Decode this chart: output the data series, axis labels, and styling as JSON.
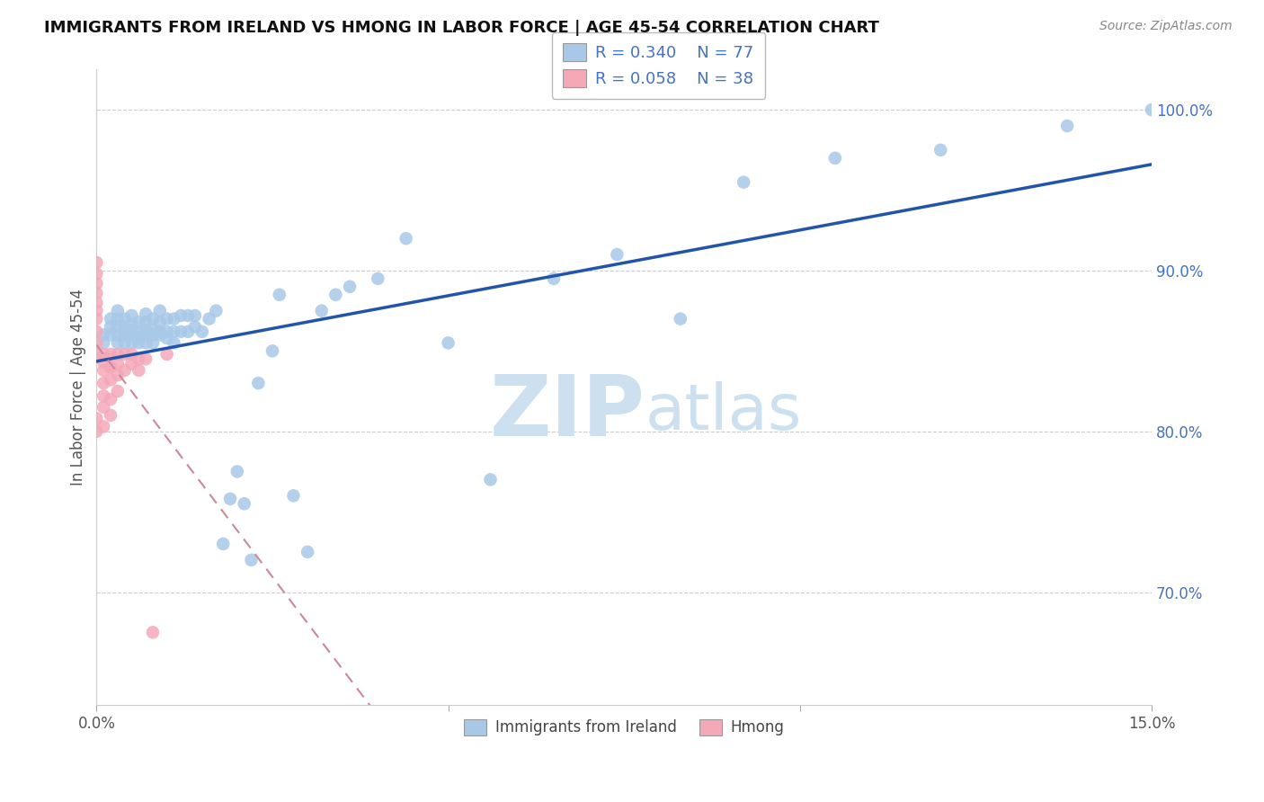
{
  "title": "IMMIGRANTS FROM IRELAND VS HMONG IN LABOR FORCE | AGE 45-54 CORRELATION CHART",
  "source": "Source: ZipAtlas.com",
  "ylabel": "In Labor Force | Age 45-54",
  "x_min": 0.0,
  "x_max": 0.15,
  "y_min": 0.63,
  "y_max": 1.025,
  "y_ticks_right": [
    0.7,
    0.8,
    0.9,
    1.0
  ],
  "y_tick_labels_right": [
    "70.0%",
    "80.0%",
    "90.0%",
    "100.0%"
  ],
  "legend_r1": "R = 0.340",
  "legend_n1": "N = 77",
  "legend_r2": "R = 0.058",
  "legend_n2": "N = 38",
  "ireland_color": "#a8c8e8",
  "hmong_color": "#f4a8b8",
  "ireland_line_color": "#2255aa",
  "hmong_line_color": "#cc8899",
  "watermark_color": "#cce0f0",
  "ireland_x": [
    0.001,
    0.001,
    0.002,
    0.002,
    0.002,
    0.003,
    0.003,
    0.003,
    0.003,
    0.003,
    0.004,
    0.004,
    0.004,
    0.004,
    0.004,
    0.005,
    0.005,
    0.005,
    0.005,
    0.005,
    0.006,
    0.006,
    0.006,
    0.006,
    0.007,
    0.007,
    0.007,
    0.007,
    0.007,
    0.008,
    0.008,
    0.008,
    0.008,
    0.009,
    0.009,
    0.009,
    0.009,
    0.01,
    0.01,
    0.01,
    0.011,
    0.011,
    0.011,
    0.012,
    0.012,
    0.013,
    0.013,
    0.014,
    0.014,
    0.015,
    0.016,
    0.017,
    0.018,
    0.019,
    0.02,
    0.021,
    0.022,
    0.023,
    0.025,
    0.026,
    0.028,
    0.03,
    0.032,
    0.034,
    0.036,
    0.04,
    0.044,
    0.05,
    0.056,
    0.065,
    0.074,
    0.083,
    0.092,
    0.105,
    0.12,
    0.138,
    0.15
  ],
  "ireland_y": [
    0.855,
    0.86,
    0.86,
    0.865,
    0.87,
    0.855,
    0.86,
    0.865,
    0.87,
    0.875,
    0.855,
    0.86,
    0.862,
    0.865,
    0.87,
    0.855,
    0.86,
    0.863,
    0.867,
    0.872,
    0.855,
    0.858,
    0.862,
    0.868,
    0.855,
    0.86,
    0.863,
    0.868,
    0.873,
    0.855,
    0.86,
    0.863,
    0.87,
    0.86,
    0.862,
    0.868,
    0.875,
    0.858,
    0.862,
    0.87,
    0.855,
    0.862,
    0.87,
    0.862,
    0.872,
    0.862,
    0.872,
    0.865,
    0.872,
    0.862,
    0.87,
    0.875,
    0.73,
    0.758,
    0.775,
    0.755,
    0.72,
    0.83,
    0.85,
    0.885,
    0.76,
    0.725,
    0.875,
    0.885,
    0.89,
    0.895,
    0.92,
    0.855,
    0.77,
    0.895,
    0.91,
    0.87,
    0.955,
    0.97,
    0.975,
    0.99,
    1.0
  ],
  "hmong_x": [
    0.0,
    0.0,
    0.0,
    0.0,
    0.0,
    0.0,
    0.0,
    0.0,
    0.0,
    0.0,
    0.0,
    0.0,
    0.001,
    0.001,
    0.001,
    0.001,
    0.001,
    0.001,
    0.001,
    0.002,
    0.002,
    0.002,
    0.002,
    0.002,
    0.002,
    0.003,
    0.003,
    0.003,
    0.003,
    0.004,
    0.004,
    0.005,
    0.005,
    0.006,
    0.006,
    0.007,
    0.008,
    0.01
  ],
  "hmong_y": [
    0.905,
    0.898,
    0.892,
    0.886,
    0.88,
    0.875,
    0.87,
    0.862,
    0.855,
    0.848,
    0.808,
    0.8,
    0.848,
    0.843,
    0.838,
    0.83,
    0.822,
    0.815,
    0.803,
    0.832,
    0.84,
    0.848,
    0.84,
    0.82,
    0.81,
    0.848,
    0.842,
    0.835,
    0.825,
    0.848,
    0.838,
    0.848,
    0.842,
    0.845,
    0.838,
    0.845,
    0.675,
    0.848
  ]
}
